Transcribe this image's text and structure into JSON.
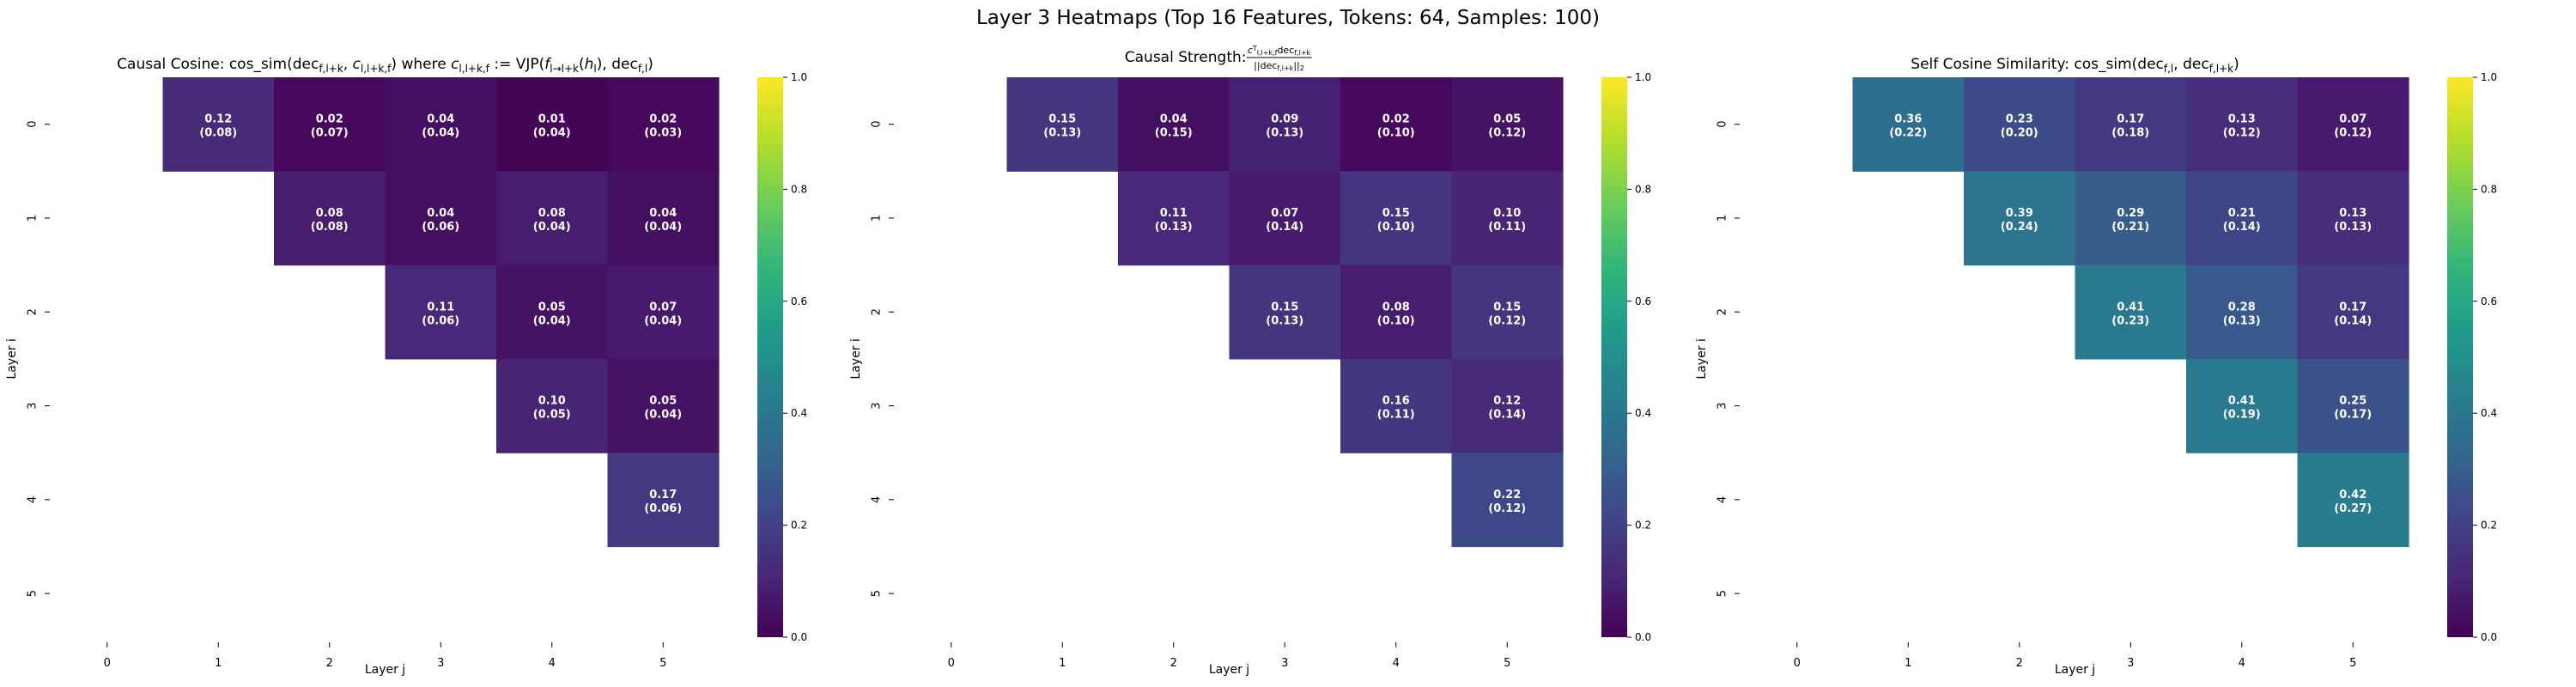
{
  "suptitle": "Layer 3 Heatmaps (Top 16 Features, Tokens: 64, Samples: 100)",
  "colormap": [
    "#440154",
    "#482878",
    "#3e4989",
    "#31688e",
    "#26828e",
    "#1f9e89",
    "#35b779",
    "#6ece58",
    "#b5de2b",
    "#fde725"
  ],
  "chart_data": [
    {
      "type": "heatmap",
      "title_parts": [
        {
          "t": "Causal Cosine: cos_sim(dec"
        },
        {
          "t": "f,l+k",
          "sub": true
        },
        {
          "t": ", "
        },
        {
          "t": "c",
          "i": true
        },
        {
          "t": "l,l+k,f",
          "sub": true
        },
        {
          "t": ") where "
        },
        {
          "t": "c",
          "i": true
        },
        {
          "t": "l,l+k,f",
          "sub": true
        },
        {
          "t": " := VJP("
        },
        {
          "t": "f",
          "i": true
        },
        {
          "t": "l→l+k",
          "sub": true
        },
        {
          "t": "(",
          "i": false
        },
        {
          "t": "h",
          "i": true
        },
        {
          "t": "l",
          "sub": true
        },
        {
          "t": "), dec"
        },
        {
          "t": "f,l",
          "sub": true
        },
        {
          "t": ")"
        }
      ],
      "xlabel": "Layer j",
      "ylabel": "Layer i",
      "x_ticks": [
        "0",
        "1",
        "2",
        "3",
        "4",
        "5"
      ],
      "y_ticks": [
        "0",
        "1",
        "2",
        "3",
        "4",
        "5"
      ],
      "clim": [
        0,
        1
      ],
      "colorbar_ticks": [
        "0.0",
        "0.2",
        "0.4",
        "0.6",
        "0.8",
        "1.0"
      ],
      "cells": [
        {
          "i": 0,
          "j": 1,
          "value": 0.12,
          "std": 0.08,
          "label": "0.12",
          "std_label": "(0.08)"
        },
        {
          "i": 0,
          "j": 2,
          "value": 0.02,
          "std": 0.07,
          "label": "0.02",
          "std_label": "(0.07)"
        },
        {
          "i": 0,
          "j": 3,
          "value": 0.04,
          "std": 0.04,
          "label": "0.04",
          "std_label": "(0.04)"
        },
        {
          "i": 0,
          "j": 4,
          "value": 0.01,
          "std": 0.04,
          "label": "0.01",
          "std_label": "(0.04)"
        },
        {
          "i": 0,
          "j": 5,
          "value": 0.02,
          "std": 0.03,
          "label": "0.02",
          "std_label": "(0.03)"
        },
        {
          "i": 1,
          "j": 2,
          "value": 0.08,
          "std": 0.08,
          "label": "0.08",
          "std_label": "(0.08)"
        },
        {
          "i": 1,
          "j": 3,
          "value": 0.04,
          "std": 0.06,
          "label": "0.04",
          "std_label": "(0.06)"
        },
        {
          "i": 1,
          "j": 4,
          "value": 0.08,
          "std": 0.04,
          "label": "0.08",
          "std_label": "(0.04)"
        },
        {
          "i": 1,
          "j": 5,
          "value": 0.04,
          "std": 0.04,
          "label": "0.04",
          "std_label": "(0.04)"
        },
        {
          "i": 2,
          "j": 3,
          "value": 0.11,
          "std": 0.06,
          "label": "0.11",
          "std_label": "(0.06)"
        },
        {
          "i": 2,
          "j": 4,
          "value": 0.05,
          "std": 0.04,
          "label": "0.05",
          "std_label": "(0.04)"
        },
        {
          "i": 2,
          "j": 5,
          "value": 0.07,
          "std": 0.04,
          "label": "0.07",
          "std_label": "(0.04)"
        },
        {
          "i": 3,
          "j": 4,
          "value": 0.1,
          "std": 0.05,
          "label": "0.10",
          "std_label": "(0.05)"
        },
        {
          "i": 3,
          "j": 5,
          "value": 0.05,
          "std": 0.04,
          "label": "0.05",
          "std_label": "(0.04)"
        },
        {
          "i": 4,
          "j": 5,
          "value": 0.17,
          "std": 0.06,
          "label": "0.17",
          "std_label": "(0.06)"
        }
      ]
    },
    {
      "type": "heatmap",
      "title_parts": [
        {
          "t": "Causal Strength: "
        },
        {
          "t": "c",
          "i": true,
          "frac": "num"
        },
        {
          "t": "T",
          "sup": true,
          "frac": "num"
        },
        {
          "t": "l,l+k,f",
          "sub": true,
          "frac": "num"
        },
        {
          "t": "dec",
          "frac": "num"
        },
        {
          "t": "f,l+k",
          "sub": true,
          "frac": "num"
        },
        {
          "t": "||dec",
          "frac": "den"
        },
        {
          "t": "f,l+k",
          "sub": true,
          "frac": "den"
        },
        {
          "t": "||",
          "frac": "den"
        },
        {
          "t": "2",
          "sub": true,
          "frac": "den"
        }
      ],
      "xlabel": "Layer j",
      "ylabel": "Layer i",
      "x_ticks": [
        "0",
        "1",
        "2",
        "3",
        "4",
        "5"
      ],
      "y_ticks": [
        "0",
        "1",
        "2",
        "3",
        "4",
        "5"
      ],
      "clim": [
        0,
        1
      ],
      "colorbar_ticks": [
        "0.0",
        "0.2",
        "0.4",
        "0.6",
        "0.8",
        "1.0"
      ],
      "cells": [
        {
          "i": 0,
          "j": 1,
          "value": 0.15,
          "std": 0.13,
          "label": "0.15",
          "std_label": "(0.13)"
        },
        {
          "i": 0,
          "j": 2,
          "value": 0.04,
          "std": 0.15,
          "label": "0.04",
          "std_label": "(0.15)"
        },
        {
          "i": 0,
          "j": 3,
          "value": 0.09,
          "std": 0.13,
          "label": "0.09",
          "std_label": "(0.13)"
        },
        {
          "i": 0,
          "j": 4,
          "value": 0.02,
          "std": 0.1,
          "label": "0.02",
          "std_label": "(0.10)"
        },
        {
          "i": 0,
          "j": 5,
          "value": 0.05,
          "std": 0.12,
          "label": "0.05",
          "std_label": "(0.12)"
        },
        {
          "i": 1,
          "j": 2,
          "value": 0.11,
          "std": 0.13,
          "label": "0.11",
          "std_label": "(0.13)"
        },
        {
          "i": 1,
          "j": 3,
          "value": 0.07,
          "std": 0.14,
          "label": "0.07",
          "std_label": "(0.14)"
        },
        {
          "i": 1,
          "j": 4,
          "value": 0.15,
          "std": 0.1,
          "label": "0.15",
          "std_label": "(0.10)"
        },
        {
          "i": 1,
          "j": 5,
          "value": 0.1,
          "std": 0.11,
          "label": "0.10",
          "std_label": "(0.11)"
        },
        {
          "i": 2,
          "j": 3,
          "value": 0.15,
          "std": 0.13,
          "label": "0.15",
          "std_label": "(0.13)"
        },
        {
          "i": 2,
          "j": 4,
          "value": 0.08,
          "std": 0.1,
          "label": "0.08",
          "std_label": "(0.10)"
        },
        {
          "i": 2,
          "j": 5,
          "value": 0.15,
          "std": 0.12,
          "label": "0.15",
          "std_label": "(0.12)"
        },
        {
          "i": 3,
          "j": 4,
          "value": 0.16,
          "std": 0.11,
          "label": "0.16",
          "std_label": "(0.11)"
        },
        {
          "i": 3,
          "j": 5,
          "value": 0.12,
          "std": 0.14,
          "label": "0.12",
          "std_label": "(0.14)"
        },
        {
          "i": 4,
          "j": 5,
          "value": 0.22,
          "std": 0.12,
          "label": "0.22",
          "std_label": "(0.12)"
        }
      ]
    },
    {
      "type": "heatmap",
      "title_parts": [
        {
          "t": "Self Cosine Similarity: cos_sim(dec"
        },
        {
          "t": "f,l",
          "sub": true
        },
        {
          "t": ", dec"
        },
        {
          "t": "f,l+k",
          "sub": true
        },
        {
          "t": ")"
        }
      ],
      "xlabel": "Layer j",
      "ylabel": "Layer i",
      "x_ticks": [
        "0",
        "1",
        "2",
        "3",
        "4",
        "5"
      ],
      "y_ticks": [
        "0",
        "1",
        "2",
        "3",
        "4",
        "5"
      ],
      "clim": [
        0,
        1
      ],
      "colorbar_ticks": [
        "0.0",
        "0.2",
        "0.4",
        "0.6",
        "0.8",
        "1.0"
      ],
      "cells": [
        {
          "i": 0,
          "j": 1,
          "value": 0.36,
          "std": 0.22,
          "label": "0.36",
          "std_label": "(0.22)"
        },
        {
          "i": 0,
          "j": 2,
          "value": 0.23,
          "std": 0.2,
          "label": "0.23",
          "std_label": "(0.20)"
        },
        {
          "i": 0,
          "j": 3,
          "value": 0.17,
          "std": 0.18,
          "label": "0.17",
          "std_label": "(0.18)"
        },
        {
          "i": 0,
          "j": 4,
          "value": 0.13,
          "std": 0.12,
          "label": "0.13",
          "std_label": "(0.12)"
        },
        {
          "i": 0,
          "j": 5,
          "value": 0.07,
          "std": 0.12,
          "label": "0.07",
          "std_label": "(0.12)"
        },
        {
          "i": 1,
          "j": 2,
          "value": 0.39,
          "std": 0.24,
          "label": "0.39",
          "std_label": "(0.24)"
        },
        {
          "i": 1,
          "j": 3,
          "value": 0.29,
          "std": 0.21,
          "label": "0.29",
          "std_label": "(0.21)"
        },
        {
          "i": 1,
          "j": 4,
          "value": 0.21,
          "std": 0.14,
          "label": "0.21",
          "std_label": "(0.14)"
        },
        {
          "i": 1,
          "j": 5,
          "value": 0.13,
          "std": 0.13,
          "label": "0.13",
          "std_label": "(0.13)"
        },
        {
          "i": 2,
          "j": 3,
          "value": 0.41,
          "std": 0.23,
          "label": "0.41",
          "std_label": "(0.23)"
        },
        {
          "i": 2,
          "j": 4,
          "value": 0.28,
          "std": 0.13,
          "label": "0.28",
          "std_label": "(0.13)"
        },
        {
          "i": 2,
          "j": 5,
          "value": 0.17,
          "std": 0.14,
          "label": "0.17",
          "std_label": "(0.14)"
        },
        {
          "i": 3,
          "j": 4,
          "value": 0.41,
          "std": 0.19,
          "label": "0.41",
          "std_label": "(0.19)"
        },
        {
          "i": 3,
          "j": 5,
          "value": 0.25,
          "std": 0.17,
          "label": "0.25",
          "std_label": "(0.17)"
        },
        {
          "i": 4,
          "j": 5,
          "value": 0.42,
          "std": 0.27,
          "label": "0.42",
          "std_label": "(0.27)"
        }
      ]
    }
  ]
}
